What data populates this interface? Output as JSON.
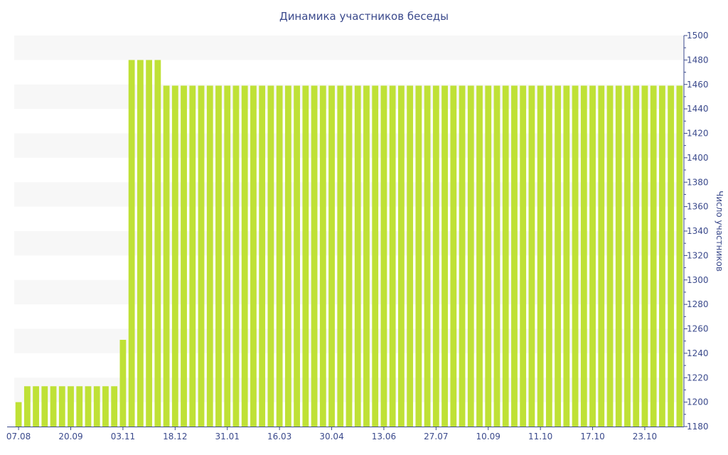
{
  "chart_data": {
    "type": "bar",
    "title": "Динамика участников беседы",
    "xlabel": "",
    "ylabel": "Число участников",
    "ylim": [
      1180,
      1500
    ],
    "y_ticks": [
      1180,
      1200,
      1220,
      1240,
      1260,
      1280,
      1300,
      1320,
      1340,
      1360,
      1380,
      1400,
      1420,
      1440,
      1460,
      1480,
      1500
    ],
    "x_tick_labels": [
      "07.08",
      "20.09",
      "03.11",
      "18.12",
      "31.01",
      "16.03",
      "30.04",
      "13.06",
      "27.07",
      "10.09",
      "11.10",
      "17.10",
      "23.10"
    ],
    "y_axis_side": "right",
    "grid": "horizontal alternating bands",
    "legend": "none",
    "colors": {
      "bar": "#bfe136",
      "band": "#f7f7f7",
      "text": "#3b4a8c",
      "axis": "#3b4a8c"
    },
    "values": [
      1200,
      1213,
      1213,
      1213,
      1213,
      1213,
      1213,
      1213,
      1213,
      1213,
      1213,
      1213,
      1251,
      1480,
      1480,
      1480,
      1480,
      1459,
      1459,
      1459,
      1459,
      1459,
      1459,
      1459,
      1459,
      1459,
      1459,
      1459,
      1459,
      1459,
      1459,
      1459,
      1459,
      1459,
      1459,
      1459,
      1459,
      1459,
      1459,
      1459,
      1459,
      1459,
      1459,
      1459,
      1459,
      1459,
      1459,
      1459,
      1459,
      1459,
      1459,
      1459,
      1459,
      1459,
      1459,
      1459,
      1459,
      1459,
      1459,
      1459,
      1459,
      1459,
      1459,
      1459,
      1459,
      1459,
      1459,
      1459,
      1459,
      1459,
      1459,
      1459,
      1459,
      1459,
      1459,
      1459,
      1459
    ]
  }
}
